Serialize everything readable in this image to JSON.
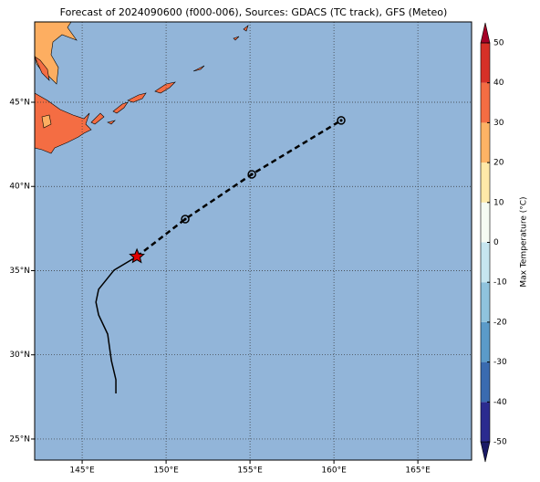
{
  "chart_data": {
    "type": "map",
    "title": "Forecast of 2024090600 (f000-006), Sources: GDACS (TC track), GFS (Meteo)",
    "xlim": [
      142.17,
      168.2
    ],
    "ylim": [
      23.75,
      49.77
    ],
    "xticks": [
      {
        "value": 145,
        "label": "145°E"
      },
      {
        "value": 150,
        "label": "150°E"
      },
      {
        "value": 155,
        "label": "155°E"
      },
      {
        "value": 160,
        "label": "160°E"
      },
      {
        "value": 165,
        "label": "165°E"
      }
    ],
    "yticks": [
      {
        "value": 25,
        "label": "25°N"
      },
      {
        "value": 30,
        "label": "30°N"
      },
      {
        "value": 35,
        "label": "35°N"
      },
      {
        "value": 40,
        "label": "40°N"
      },
      {
        "value": 45,
        "label": "45°N"
      }
    ],
    "grid": true,
    "ocean_color": "#92b5d9",
    "tracks": [
      {
        "style": "solid",
        "color": "#000000",
        "lon": [
          147.01,
          147.01,
          146.74,
          146.52,
          145.98,
          145.82,
          145.98,
          146.9,
          148.26
        ],
        "lat": [
          27.71,
          28.52,
          29.66,
          31.23,
          32.37,
          33.13,
          33.89,
          35.03,
          35.84
        ]
      },
      {
        "style": "dashed",
        "color": "#000000",
        "lon": [
          148.26,
          151.14,
          155.11,
          160.43
        ],
        "lat": [
          35.84,
          38.06,
          40.72,
          43.92
        ],
        "markers": [
          "star",
          "circle",
          "circle",
          "circle"
        ],
        "marker_color": "#e00000"
      }
    ],
    "colorbar": {
      "label": "Max Temperature (°C)",
      "ticks": [
        -50,
        -40,
        -30,
        -20,
        -10,
        0,
        10,
        20,
        30,
        40,
        50
      ],
      "colors": [
        "#1a1a66",
        "#2b2b8f",
        "#3a6bb0",
        "#5b9bc9",
        "#8fc3dd",
        "#c6e6f0",
        "#f5fbf3",
        "#fee9a8",
        "#fdb365",
        "#f46d43",
        "#d63027",
        "#a50026"
      ]
    }
  }
}
